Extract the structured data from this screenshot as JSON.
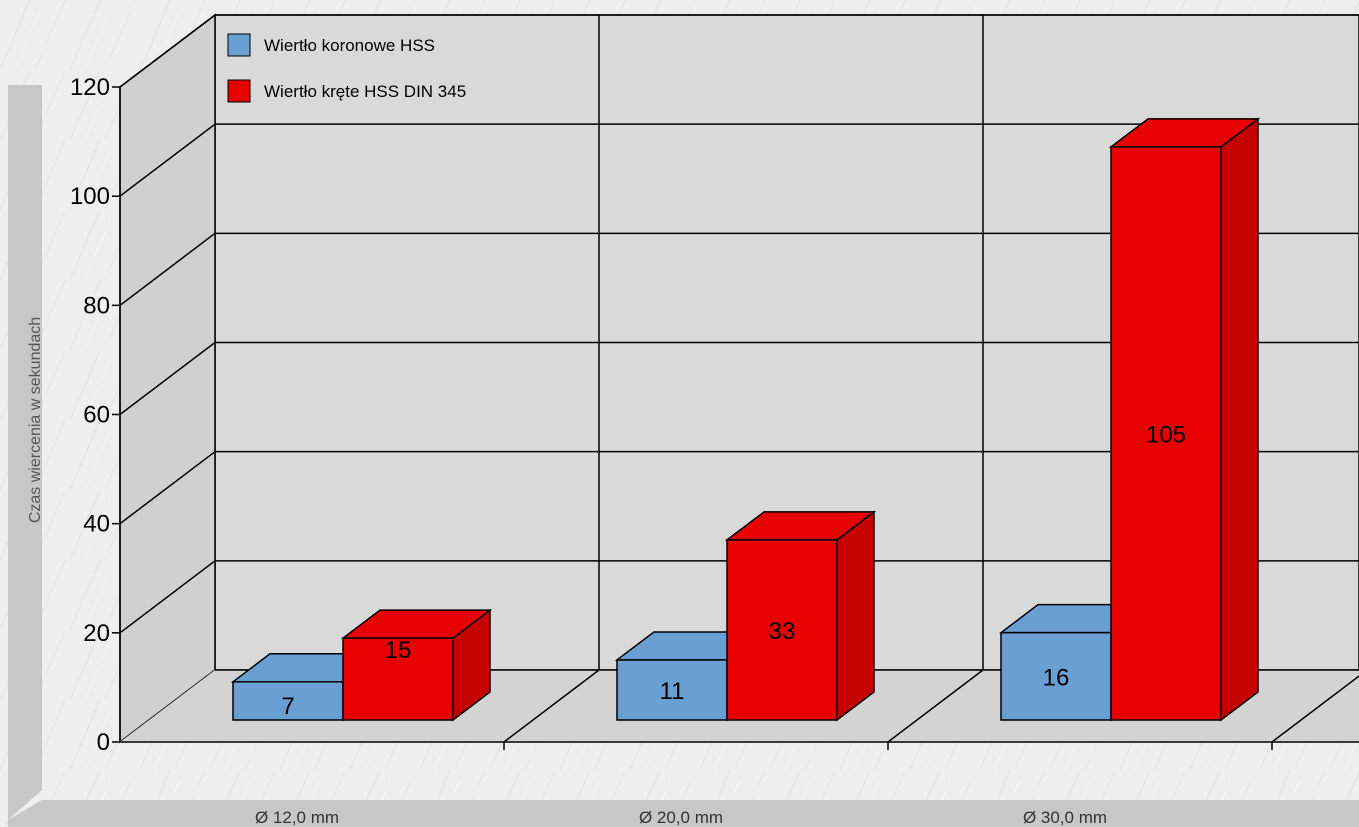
{
  "chart_data": {
    "type": "bar",
    "style": "3d",
    "categories": [
      "Ø 12,0 mm",
      "Ø 20,0 mm",
      "Ø 30,0 mm"
    ],
    "series": [
      {
        "name": "Wiertło koronowe HSS",
        "color": "#6a9fd4",
        "values": [
          7,
          11,
          16
        ]
      },
      {
        "name": "Wiertło kręte HSS DIN 345",
        "color": "#e60000",
        "values": [
          15,
          33,
          105
        ]
      }
    ],
    "ylabel": "Czas wiercenia w sekundach",
    "xlabel": "",
    "ylim": [
      0,
      120
    ],
    "yticks": [
      0,
      20,
      40,
      60,
      80,
      100,
      120
    ],
    "grid": true,
    "legend_position": "top-left",
    "data_labels": true
  }
}
